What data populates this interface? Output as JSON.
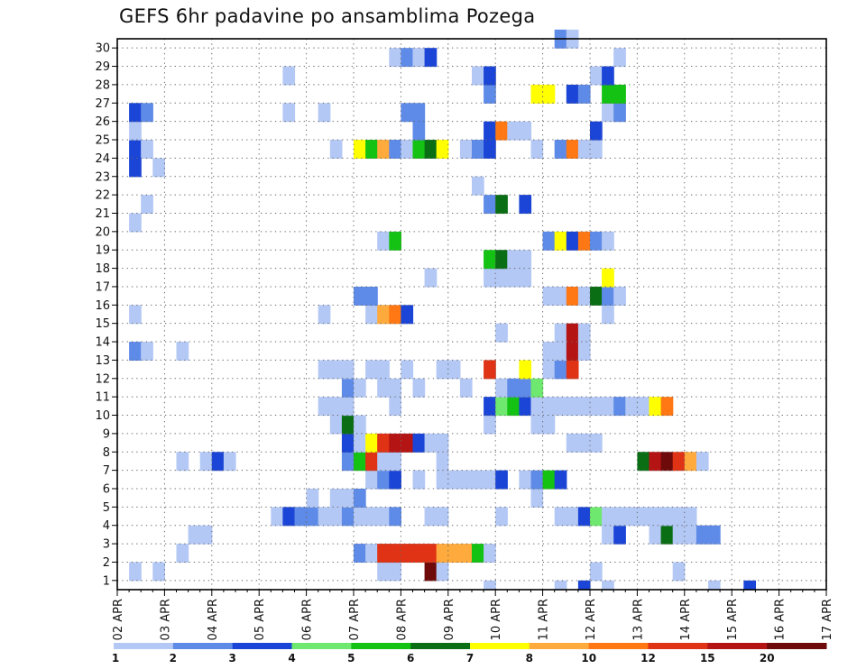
{
  "chart_data": {
    "type": "heatmap",
    "title": "GEFS 6hr padavine po ansamblima Pozega",
    "xlabel": "",
    "ylabel": "",
    "x_ticks": [
      "02 APR",
      "03 APR",
      "04 APR",
      "05 APR",
      "06 APR",
      "07 APR",
      "08 APR",
      "09 APR",
      "10 APR",
      "11 APR",
      "12 APR",
      "13 APR",
      "14 APR",
      "15 APR",
      "16 APR",
      "17 APR"
    ],
    "y_ticks": [
      "1",
      "2",
      "3",
      "4",
      "5",
      "6",
      "7",
      "8",
      "9",
      "10",
      "11",
      "12",
      "13",
      "14",
      "15",
      "16",
      "17",
      "18",
      "19",
      "20",
      "21",
      "22",
      "23",
      "24",
      "25",
      "26",
      "27",
      "28",
      "29",
      "30"
    ],
    "x_range": [
      "02 APR 00Z",
      "17 APR 00Z"
    ],
    "y_range": [
      0,
      30
    ],
    "grid": true,
    "colorbar": {
      "levels": [
        "1",
        "2",
        "3",
        "4",
        "5",
        "6",
        "7",
        "8",
        "10",
        "12",
        "15",
        "20"
      ],
      "colors": [
        "#b4c8f5",
        "#5f8be8",
        "#1b45d6",
        "#6ee86e",
        "#14c214",
        "#0a6e14",
        "#ffff00",
        "#ffaa3c",
        "#ff7814",
        "#e03214",
        "#b41414",
        "#6e0a0a"
      ]
    },
    "cells_note_units": "x = 6-hour step index from 02 APR 00Z, y = ensemble member, c = colour class index",
    "cells": [
      [
        1,
        1,
        0
      ],
      [
        3,
        1,
        0
      ],
      [
        22,
        1,
        0
      ],
      [
        23,
        1,
        0
      ],
      [
        31,
        0,
        0
      ],
      [
        37,
        0,
        0
      ],
      [
        41,
        0,
        0
      ],
      [
        39,
        0,
        2
      ],
      [
        50,
        0,
        0
      ],
      [
        53,
        0,
        2
      ],
      [
        26,
        1,
        11
      ],
      [
        27,
        1,
        0
      ],
      [
        40,
        1,
        0
      ],
      [
        47,
        1,
        0
      ],
      [
        5,
        2,
        0
      ],
      [
        20,
        2,
        1
      ],
      [
        21,
        2,
        0
      ],
      [
        22,
        2,
        9
      ],
      [
        23,
        2,
        9
      ],
      [
        24,
        2,
        9
      ],
      [
        25,
        2,
        9
      ],
      [
        26,
        2,
        9
      ],
      [
        27,
        2,
        7
      ],
      [
        28,
        2,
        7
      ],
      [
        29,
        2,
        7
      ],
      [
        30,
        2,
        4
      ],
      [
        31,
        2,
        0
      ],
      [
        6,
        3,
        0
      ],
      [
        7,
        3,
        0
      ],
      [
        41,
        3,
        0
      ],
      [
        42,
        3,
        2
      ],
      [
        45,
        3,
        0
      ],
      [
        46,
        3,
        5
      ],
      [
        47,
        3,
        0
      ],
      [
        48,
        3,
        0
      ],
      [
        49,
        3,
        1
      ],
      [
        50,
        3,
        1
      ],
      [
        13,
        4,
        0
      ],
      [
        14,
        4,
        2
      ],
      [
        15,
        4,
        1
      ],
      [
        16,
        4,
        1
      ],
      [
        17,
        4,
        0
      ],
      [
        18,
        4,
        0
      ],
      [
        19,
        4,
        1
      ],
      [
        20,
        4,
        0
      ],
      [
        21,
        4,
        0
      ],
      [
        22,
        4,
        0
      ],
      [
        23,
        4,
        1
      ],
      [
        26,
        4,
        0
      ],
      [
        27,
        4,
        0
      ],
      [
        32,
        4,
        0
      ],
      [
        37,
        4,
        0
      ],
      [
        38,
        4,
        0
      ],
      [
        39,
        4,
        2
      ],
      [
        40,
        4,
        3
      ],
      [
        41,
        4,
        0
      ],
      [
        42,
        4,
        0
      ],
      [
        43,
        4,
        0
      ],
      [
        44,
        4,
        0
      ],
      [
        45,
        4,
        0
      ],
      [
        46,
        4,
        0
      ],
      [
        47,
        4,
        0
      ],
      [
        48,
        4,
        0
      ],
      [
        16,
        5,
        0
      ],
      [
        18,
        5,
        0
      ],
      [
        19,
        5,
        0
      ],
      [
        20,
        5,
        1
      ],
      [
        35,
        5,
        0
      ],
      [
        21,
        6,
        0
      ],
      [
        22,
        6,
        1
      ],
      [
        23,
        6,
        2
      ],
      [
        25,
        6,
        0
      ],
      [
        27,
        6,
        0
      ],
      [
        28,
        6,
        0
      ],
      [
        29,
        6,
        0
      ],
      [
        30,
        6,
        0
      ],
      [
        31,
        6,
        0
      ],
      [
        32,
        6,
        2
      ],
      [
        34,
        6,
        0
      ],
      [
        35,
        6,
        1
      ],
      [
        36,
        6,
        4
      ],
      [
        37,
        6,
        2
      ],
      [
        5,
        7,
        0
      ],
      [
        7,
        7,
        0
      ],
      [
        8,
        7,
        2
      ],
      [
        9,
        7,
        0
      ],
      [
        19,
        7,
        1
      ],
      [
        20,
        7,
        4
      ],
      [
        21,
        7,
        9
      ],
      [
        22,
        7,
        0
      ],
      [
        23,
        7,
        0
      ],
      [
        27,
        7,
        0
      ],
      [
        44,
        7,
        5
      ],
      [
        45,
        7,
        10
      ],
      [
        46,
        7,
        11
      ],
      [
        47,
        7,
        9
      ],
      [
        48,
        7,
        7
      ],
      [
        49,
        7,
        0
      ],
      [
        19,
        8,
        2
      ],
      [
        20,
        8,
        0
      ],
      [
        21,
        8,
        6
      ],
      [
        22,
        8,
        9
      ],
      [
        23,
        8,
        10
      ],
      [
        24,
        8,
        10
      ],
      [
        25,
        8,
        2
      ],
      [
        26,
        8,
        0
      ],
      [
        27,
        8,
        0
      ],
      [
        38,
        8,
        0
      ],
      [
        39,
        8,
        0
      ],
      [
        40,
        8,
        0
      ],
      [
        18,
        9,
        0
      ],
      [
        19,
        9,
        5
      ],
      [
        20,
        9,
        0
      ],
      [
        31,
        9,
        0
      ],
      [
        35,
        9,
        0
      ],
      [
        36,
        9,
        0
      ],
      [
        17,
        10,
        0
      ],
      [
        18,
        10,
        0
      ],
      [
        19,
        10,
        0
      ],
      [
        23,
        10,
        0
      ],
      [
        31,
        10,
        2
      ],
      [
        32,
        10,
        3
      ],
      [
        33,
        10,
        4
      ],
      [
        34,
        10,
        2
      ],
      [
        35,
        10,
        0
      ],
      [
        36,
        10,
        0
      ],
      [
        37,
        10,
        0
      ],
      [
        38,
        10,
        0
      ],
      [
        39,
        10,
        0
      ],
      [
        40,
        10,
        0
      ],
      [
        41,
        10,
        0
      ],
      [
        42,
        10,
        1
      ],
      [
        43,
        10,
        0
      ],
      [
        44,
        10,
        0
      ],
      [
        45,
        10,
        6
      ],
      [
        46,
        10,
        8
      ],
      [
        19,
        11,
        1
      ],
      [
        20,
        11,
        0
      ],
      [
        22,
        11,
        0
      ],
      [
        23,
        11,
        0
      ],
      [
        25,
        11,
        0
      ],
      [
        29,
        11,
        0
      ],
      [
        32,
        11,
        0
      ],
      [
        33,
        11,
        1
      ],
      [
        34,
        11,
        1
      ],
      [
        35,
        11,
        3
      ],
      [
        17,
        12,
        0
      ],
      [
        18,
        12,
        0
      ],
      [
        19,
        12,
        0
      ],
      [
        21,
        12,
        0
      ],
      [
        22,
        12,
        0
      ],
      [
        24,
        12,
        0
      ],
      [
        27,
        12,
        0
      ],
      [
        28,
        12,
        0
      ],
      [
        31,
        12,
        9
      ],
      [
        34,
        12,
        6
      ],
      [
        36,
        12,
        0
      ],
      [
        37,
        12,
        1
      ],
      [
        38,
        12,
        9
      ],
      [
        1,
        13,
        1
      ],
      [
        2,
        13,
        0
      ],
      [
        5,
        13,
        0
      ],
      [
        36,
        13,
        0
      ],
      [
        37,
        13,
        0
      ],
      [
        38,
        13,
        10
      ],
      [
        39,
        13,
        0
      ],
      [
        32,
        14,
        0
      ],
      [
        37,
        14,
        0
      ],
      [
        38,
        14,
        10
      ],
      [
        39,
        14,
        0
      ],
      [
        1,
        15,
        0
      ],
      [
        17,
        15,
        0
      ],
      [
        21,
        15,
        0
      ],
      [
        22,
        15,
        7
      ],
      [
        23,
        15,
        8
      ],
      [
        24,
        15,
        2
      ],
      [
        41,
        15,
        0
      ],
      [
        20,
        16,
        1
      ],
      [
        21,
        16,
        1
      ],
      [
        36,
        16,
        0
      ],
      [
        37,
        16,
        0
      ],
      [
        38,
        16,
        8
      ],
      [
        39,
        16,
        0
      ],
      [
        40,
        16,
        5
      ],
      [
        41,
        16,
        1
      ],
      [
        42,
        16,
        0
      ],
      [
        26,
        17,
        0
      ],
      [
        31,
        17,
        0
      ],
      [
        32,
        17,
        0
      ],
      [
        33,
        17,
        0
      ],
      [
        34,
        17,
        0
      ],
      [
        41,
        17,
        6
      ],
      [
        31,
        18,
        4
      ],
      [
        32,
        18,
        5
      ],
      [
        33,
        18,
        0
      ],
      [
        34,
        18,
        0
      ],
      [
        22,
        19,
        0
      ],
      [
        23,
        19,
        4
      ],
      [
        36,
        19,
        1
      ],
      [
        37,
        19,
        6
      ],
      [
        38,
        19,
        2
      ],
      [
        39,
        19,
        8
      ],
      [
        40,
        19,
        1
      ],
      [
        41,
        19,
        0
      ],
      [
        1,
        20,
        0
      ],
      [
        31,
        21,
        1
      ],
      [
        32,
        21,
        5
      ],
      [
        34,
        21,
        2
      ],
      [
        2,
        21,
        0
      ],
      [
        30,
        22,
        0
      ],
      [
        1,
        23,
        2
      ],
      [
        3,
        23,
        0
      ],
      [
        1,
        24,
        2
      ],
      [
        2,
        24,
        0
      ],
      [
        18,
        24,
        0
      ],
      [
        20,
        24,
        6
      ],
      [
        21,
        24,
        4
      ],
      [
        22,
        24,
        7
      ],
      [
        23,
        24,
        1
      ],
      [
        24,
        24,
        0
      ],
      [
        25,
        24,
        4
      ],
      [
        26,
        24,
        5
      ],
      [
        27,
        24,
        6
      ],
      [
        29,
        24,
        0
      ],
      [
        30,
        24,
        1
      ],
      [
        31,
        24,
        2
      ],
      [
        35,
        24,
        0
      ],
      [
        37,
        24,
        1
      ],
      [
        38,
        24,
        8
      ],
      [
        39,
        24,
        0
      ],
      [
        40,
        24,
        0
      ],
      [
        1,
        25,
        0
      ],
      [
        25,
        25,
        1
      ],
      [
        31,
        25,
        2
      ],
      [
        32,
        25,
        8
      ],
      [
        33,
        25,
        0
      ],
      [
        34,
        25,
        0
      ],
      [
        40,
        25,
        2
      ],
      [
        1,
        26,
        2
      ],
      [
        2,
        26,
        1
      ],
      [
        14,
        26,
        0
      ],
      [
        17,
        26,
        0
      ],
      [
        24,
        26,
        1
      ],
      [
        25,
        26,
        1
      ],
      [
        41,
        26,
        0
      ],
      [
        42,
        26,
        1
      ],
      [
        31,
        27,
        1
      ],
      [
        35,
        27,
        6
      ],
      [
        36,
        27,
        6
      ],
      [
        38,
        27,
        2
      ],
      [
        39,
        27,
        1
      ],
      [
        41,
        27,
        4
      ],
      [
        42,
        27,
        4
      ],
      [
        14,
        28,
        0
      ],
      [
        30,
        28,
        0
      ],
      [
        31,
        28,
        2
      ],
      [
        40,
        28,
        0
      ],
      [
        41,
        28,
        2
      ],
      [
        23,
        29,
        0
      ],
      [
        24,
        29,
        1
      ],
      [
        25,
        29,
        0
      ],
      [
        26,
        29,
        2
      ],
      [
        42,
        29,
        0
      ],
      [
        37,
        30,
        1
      ],
      [
        38,
        30,
        0
      ]
    ]
  }
}
